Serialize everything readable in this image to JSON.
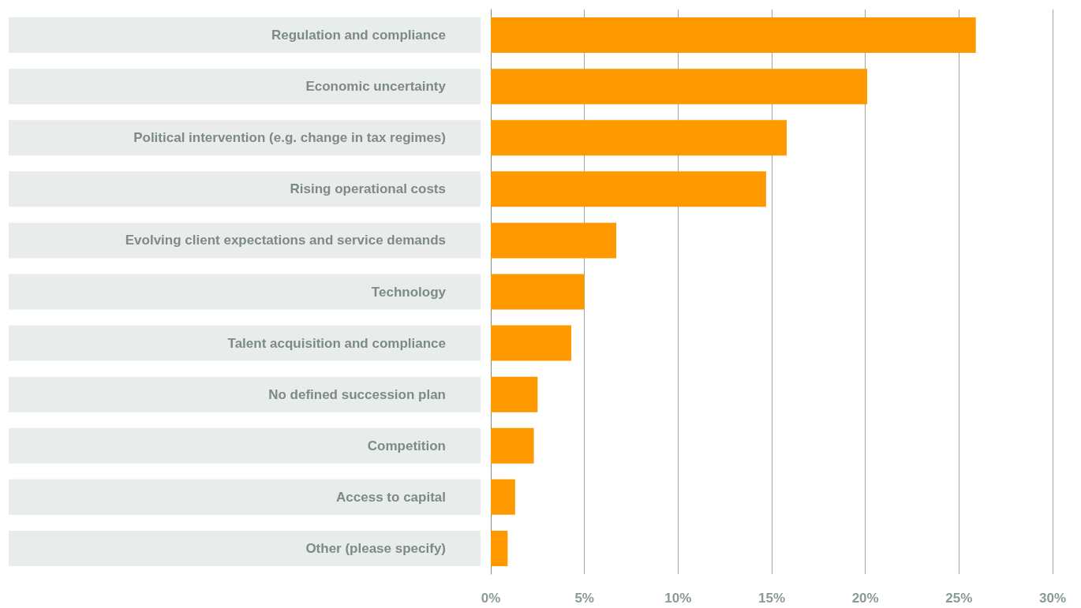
{
  "chart_data": {
    "type": "bar",
    "orientation": "horizontal",
    "categories": [
      "Regulation and compliance",
      "Economic uncertainty",
      "Political intervention (e.g. change in tax regimes)",
      "Rising operational costs",
      "Evolving client expectations and service demands",
      "Technology",
      "Talent acquisition and compliance",
      "No defined succession plan",
      "Competition",
      "Access to capital",
      "Other (please specify)"
    ],
    "values": [
      25.9,
      20.1,
      15.8,
      14.7,
      6.7,
      5.0,
      4.3,
      2.5,
      2.3,
      1.3,
      0.9
    ],
    "color": "#ff9900",
    "xlim": [
      0,
      30
    ],
    "xticks": [
      {
        "value": 0,
        "label": "0%"
      },
      {
        "value": 5,
        "label": "5%"
      },
      {
        "value": 10,
        "label": "10%"
      },
      {
        "value": 15,
        "label": "15%"
      },
      {
        "value": 20,
        "label": "20%"
      },
      {
        "value": 25,
        "label": "25%"
      },
      {
        "value": 30,
        "label": "30%"
      }
    ],
    "grid": "x"
  }
}
